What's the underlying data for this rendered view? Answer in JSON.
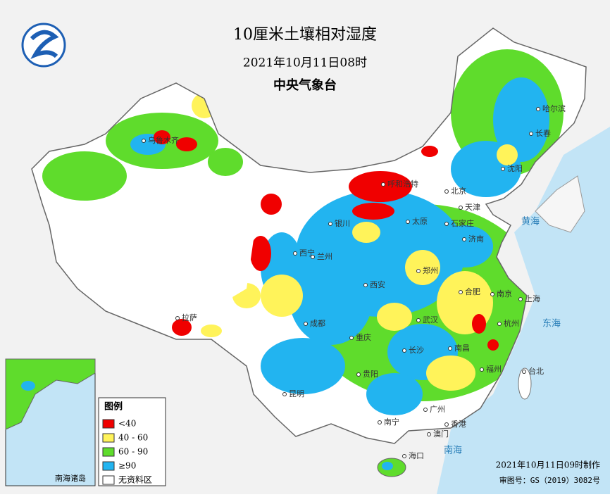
{
  "header": {
    "title": "10厘米土壤相对湿度",
    "date": "2021年10月11日08时",
    "agency": "中央气象台"
  },
  "legend": {
    "title": "图例",
    "items": [
      {
        "label": "<40",
        "color": "#f00000"
      },
      {
        "label": "40 - 60",
        "color": "#fff35a"
      },
      {
        "label": "60 - 90",
        "color": "#5fdc2c"
      },
      {
        "label": "≥90",
        "color": "#22b4f0"
      },
      {
        "label": "无资料区",
        "color": "#ffffff"
      }
    ]
  },
  "cities": [
    "哈尔滨",
    "长春",
    "沈阳",
    "北京",
    "天津",
    "呼和浩特",
    "石家庄",
    "太原",
    "济南",
    "银川",
    "兰州",
    "西宁",
    "西安",
    "郑州",
    "合肥",
    "南京",
    "上海",
    "杭州",
    "武汉",
    "成都",
    "重庆",
    "长沙",
    "南昌",
    "贵阳",
    "昆明",
    "南宁",
    "广州",
    "福州",
    "台北",
    "香港",
    "澳门",
    "海口",
    "拉萨",
    "乌鲁木齐"
  ],
  "seas": [
    "黄海",
    "东海",
    "南海"
  ],
  "inset": {
    "label": "南海诸岛"
  },
  "footer": {
    "made": "2021年10月11日09时制作",
    "approval": "审图号：GS（2019）3082号"
  }
}
